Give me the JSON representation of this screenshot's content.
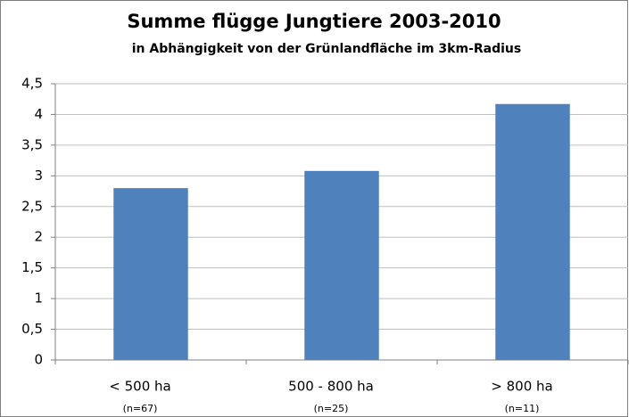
{
  "chart_data": {
    "type": "bar",
    "title": "Summe flügge Jungtiere 2003-2010",
    "subtitle": "in Abhängigkeit von der Grünlandfläche im 3km-Radius",
    "categories": [
      "< 500 ha",
      "500 - 800 ha",
      "> 800 ha"
    ],
    "category_notes": [
      "(n=67)",
      "(n=25)",
      "(n=11)"
    ],
    "values": [
      2.8,
      3.08,
      4.17
    ],
    "color": "#4f81bd",
    "ylim": [
      0,
      4.5
    ],
    "yticks": [
      0,
      {
        "value": 0.5,
        "label": "0,5"
      },
      1,
      {
        "value": 1.5,
        "label": "1,5"
      },
      2,
      {
        "value": 2.5,
        "label": "2,5"
      },
      3,
      {
        "value": 3.5,
        "label": "3,5"
      },
      4,
      {
        "value": 4.5,
        "label": "4,5"
      }
    ],
    "grid": true
  }
}
